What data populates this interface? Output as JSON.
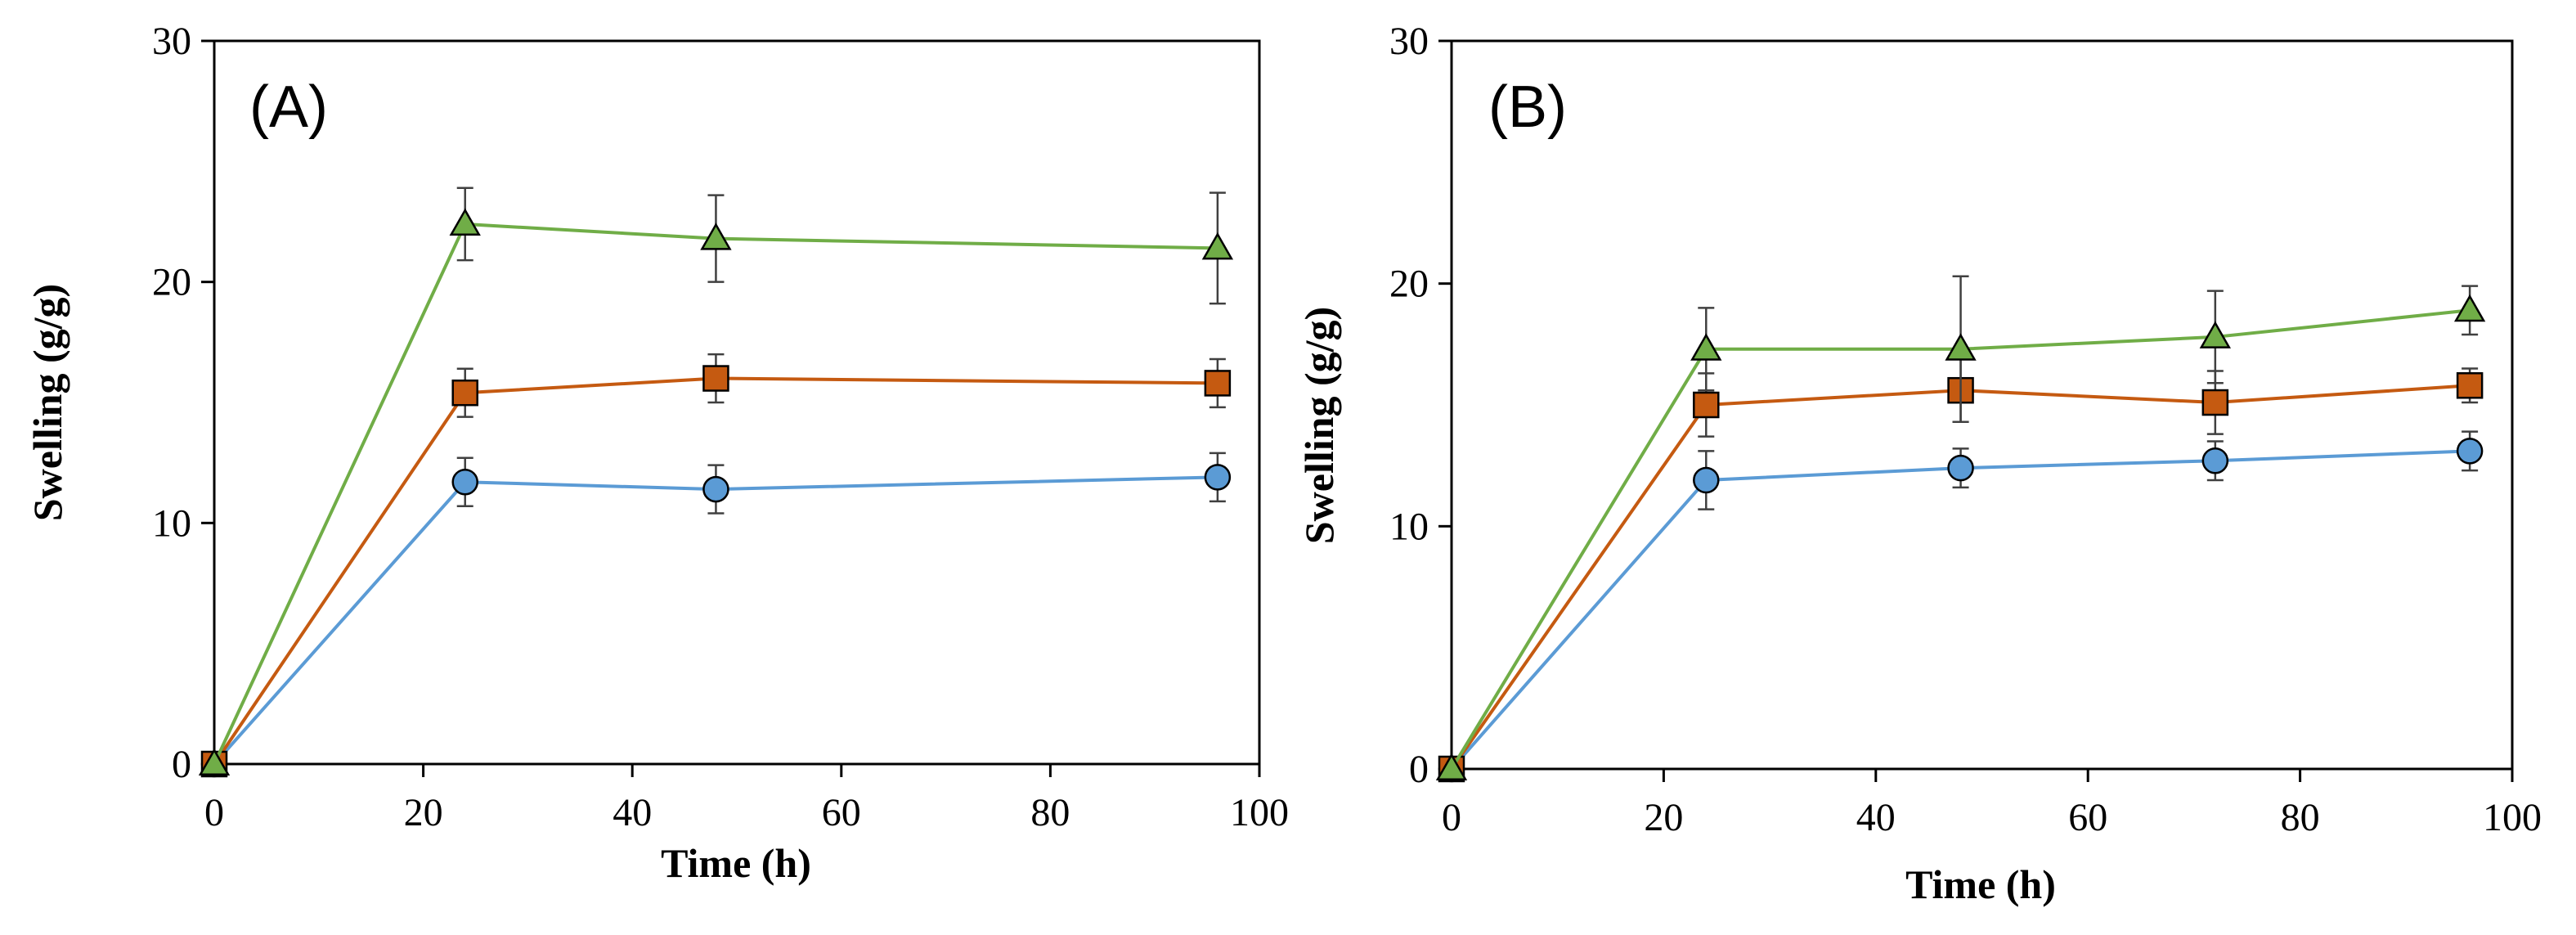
{
  "chart_data": [
    {
      "type": "line",
      "panel_label": "(A)",
      "xlabel": "Time (h)",
      "ylabel": "Swelling (g/g)",
      "xlim": [
        0,
        100
      ],
      "ylim": [
        0,
        30
      ],
      "xticks": [
        0,
        20,
        40,
        60,
        80,
        100
      ],
      "yticks": [
        0,
        10,
        20,
        30
      ],
      "series": [
        {
          "name": "circle",
          "marker": "circle",
          "color": "#5b9bd5",
          "x": [
            0,
            24,
            48,
            96
          ],
          "y": [
            0,
            11.7,
            11.4,
            11.9
          ],
          "err": [
            0,
            1.0,
            1.0,
            1.0
          ]
        },
        {
          "name": "square",
          "marker": "square",
          "color": "#c55a11",
          "x": [
            0,
            24,
            48,
            96
          ],
          "y": [
            0,
            15.4,
            16.0,
            15.8
          ],
          "err": [
            0,
            1.0,
            1.0,
            1.0
          ]
        },
        {
          "name": "triangle",
          "marker": "triangle",
          "color": "#70ad47",
          "x": [
            0,
            24,
            48,
            96
          ],
          "y": [
            0,
            22.4,
            21.8,
            21.4
          ],
          "err": [
            0,
            1.5,
            1.8,
            2.3
          ]
        }
      ]
    },
    {
      "type": "line",
      "panel_label": "(B)",
      "xlabel": "Time (h)",
      "ylabel": "Swelling (g/g)",
      "xlim": [
        0,
        100
      ],
      "ylim": [
        0,
        30
      ],
      "xticks": [
        0,
        20,
        40,
        60,
        80,
        100
      ],
      "yticks": [
        0,
        10,
        20,
        30
      ],
      "series": [
        {
          "name": "circle",
          "marker": "circle",
          "color": "#5b9bd5",
          "x": [
            0,
            24,
            48,
            72,
            96
          ],
          "y": [
            0,
            11.9,
            12.4,
            12.7,
            13.1
          ],
          "err": [
            0,
            1.2,
            0.8,
            0.8,
            0.8
          ]
        },
        {
          "name": "square",
          "marker": "square",
          "color": "#c55a11",
          "x": [
            0,
            24,
            48,
            72,
            96
          ],
          "y": [
            0,
            15.0,
            15.6,
            15.1,
            15.8
          ],
          "err": [
            0,
            1.3,
            1.3,
            1.3,
            0.7
          ]
        },
        {
          "name": "triangle",
          "marker": "triangle",
          "color": "#70ad47",
          "x": [
            0,
            24,
            48,
            72,
            96
          ],
          "y": [
            0,
            17.3,
            17.3,
            17.8,
            18.9
          ],
          "err": [
            0,
            1.7,
            3.0,
            1.9,
            1.0
          ]
        }
      ]
    }
  ]
}
